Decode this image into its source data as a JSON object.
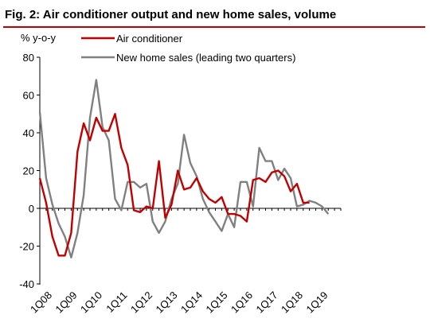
{
  "chart_data": {
    "type": "line",
    "title": "Fig. 2: Air conditioner output and new home sales, volume",
    "ylabel": "% y-o-y",
    "xlabel": "",
    "ylim": [
      -40,
      80
    ],
    "yticks": [
      80,
      60,
      40,
      20,
      0,
      -20,
      -40
    ],
    "x_tick_labels": [
      "1Q08",
      "1Q09",
      "1Q10",
      "1Q11",
      "1Q12",
      "1Q13",
      "1Q14",
      "1Q15",
      "1Q16",
      "1Q17",
      "1Q18",
      "1Q19"
    ],
    "grid": false,
    "legend_position": "top",
    "colors": {
      "air_conditioner": "#c00000",
      "new_home_sales": "#808080",
      "title_rule": "#c00000"
    },
    "series": [
      {
        "name": "Air conditioner",
        "values": [
          16,
          3,
          -15,
          -25,
          -25,
          -13,
          30,
          45,
          36,
          48,
          41,
          41,
          50,
          32,
          23,
          -1,
          -2,
          1,
          0,
          25,
          -5,
          2,
          20,
          10,
          11,
          16,
          9,
          5,
          3,
          6,
          -3,
          -3,
          -4,
          -7,
          15,
          16,
          14,
          19,
          20,
          17,
          9,
          13,
          3,
          3
        ],
        "x_start": 0
      },
      {
        "name": "New home sales (leading two quarters)",
        "values": [
          51,
          16,
          2,
          -8,
          -15,
          -26,
          -13,
          7,
          48,
          68,
          43,
          36,
          5,
          -1,
          14,
          14,
          11,
          13,
          -7,
          -13,
          -7,
          5,
          13,
          39,
          24,
          17,
          5,
          -2,
          -7,
          -12,
          -3,
          -10,
          14,
          14,
          1,
          32,
          25,
          25,
          15,
          21,
          16,
          1,
          2,
          4,
          3,
          1,
          -3
        ],
        "x_start": 0
      }
    ]
  }
}
